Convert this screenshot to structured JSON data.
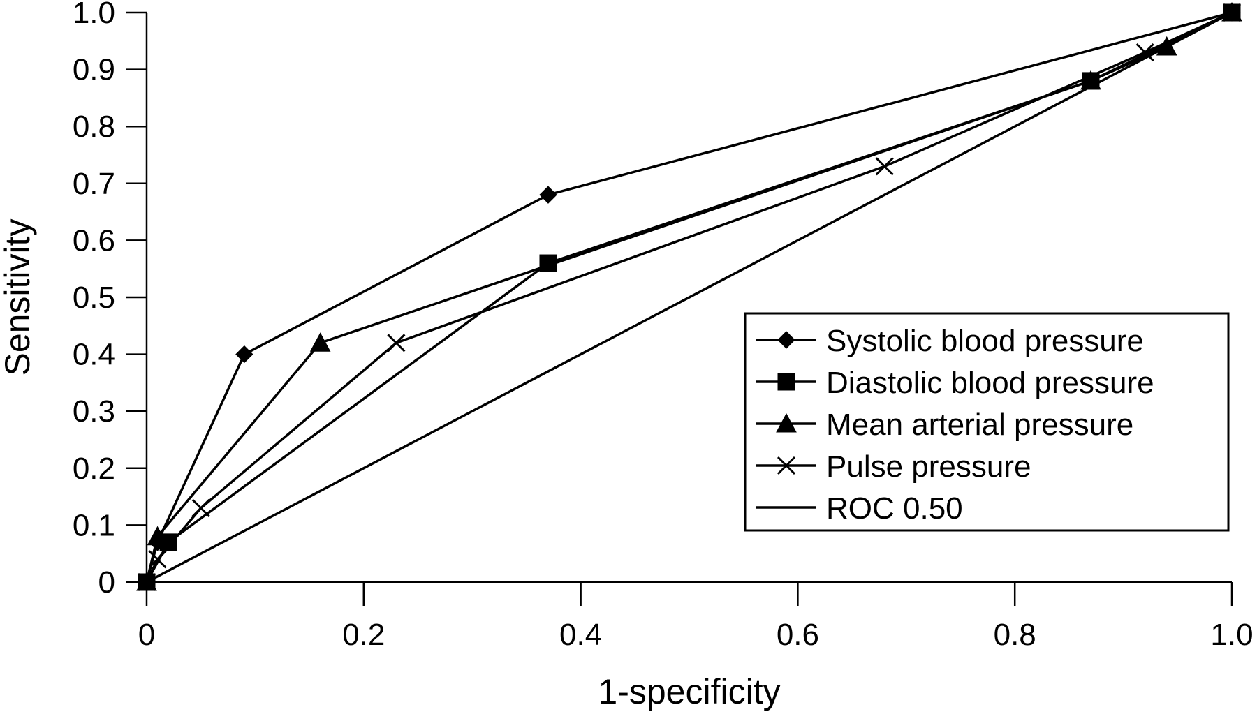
{
  "chart_data": {
    "type": "line",
    "title": "",
    "xlabel": "1-specificity",
    "ylabel": "Sensitivity",
    "xlim": [
      0,
      1
    ],
    "ylim": [
      0,
      1
    ],
    "xticks": [
      "0",
      "0.2",
      "0.4",
      "0.6",
      "0.8",
      "1.0"
    ],
    "yticks": [
      "0",
      "0.1",
      "0.2",
      "0.3",
      "0.4",
      "0.5",
      "0.6",
      "0.7",
      "0.8",
      "0.9",
      "1.0"
    ],
    "legend_position": "lower-right",
    "grid": false,
    "series": [
      {
        "name": "Systolic blood pressure",
        "marker": "diamond-icon",
        "points": [
          [
            0,
            0
          ],
          [
            0.01,
            0.07
          ],
          [
            0.09,
            0.4
          ],
          [
            0.37,
            0.68
          ],
          [
            1.0,
            1.0
          ]
        ]
      },
      {
        "name": "Diastolic blood pressure",
        "marker": "square-icon",
        "points": [
          [
            0,
            0
          ],
          [
            0.02,
            0.07
          ],
          [
            0.37,
            0.56
          ],
          [
            0.87,
            0.88
          ],
          [
            1.0,
            1.0
          ]
        ]
      },
      {
        "name": "Mean arterial pressure",
        "marker": "triangle-icon",
        "points": [
          [
            0,
            0
          ],
          [
            0.01,
            0.08
          ],
          [
            0.16,
            0.42
          ],
          [
            0.87,
            0.88
          ],
          [
            0.94,
            0.94
          ],
          [
            1.0,
            1.0
          ]
        ]
      },
      {
        "name": "Pulse pressure",
        "marker": "x-icon",
        "points": [
          [
            0,
            0
          ],
          [
            0.01,
            0.04
          ],
          [
            0.05,
            0.13
          ],
          [
            0.23,
            0.42
          ],
          [
            0.68,
            0.73
          ],
          [
            0.92,
            0.93
          ],
          [
            1.0,
            1.0
          ]
        ]
      },
      {
        "name": "ROC 0.50",
        "marker": "none",
        "points": [
          [
            0,
            0
          ],
          [
            1.0,
            1.0
          ]
        ]
      }
    ]
  }
}
